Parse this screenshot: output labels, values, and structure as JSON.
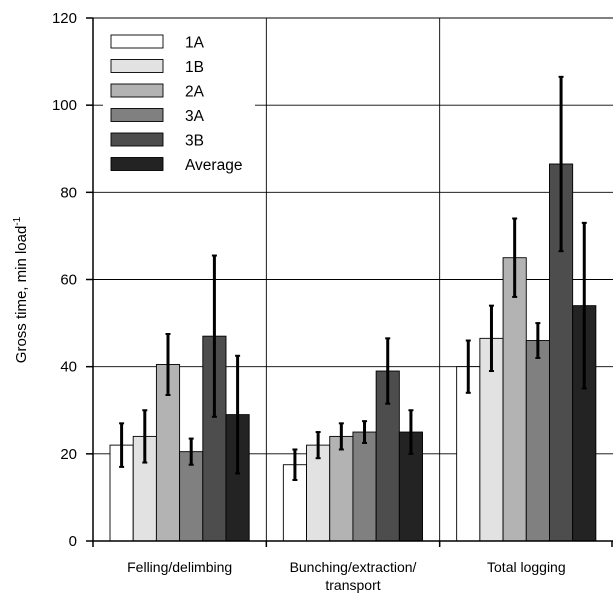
{
  "chart_data": {
    "type": "bar",
    "categories": [
      "Felling/delimbing",
      "Bunching/extraction/\ntransport",
      "Total logging"
    ],
    "ylabel": "Gross time, min load",
    "ylabel_superscript": "-1",
    "ylim": [
      0,
      120
    ],
    "yticks": [
      0,
      20,
      40,
      60,
      80,
      100,
      120
    ],
    "grid": true,
    "legend_position": "top-left",
    "series": [
      {
        "name": "1A",
        "color": "#ffffff",
        "values": [
          22,
          17.5,
          40
        ],
        "errors": [
          5,
          3.5,
          6
        ]
      },
      {
        "name": "1B",
        "color": "#e2e2e2",
        "values": [
          24,
          22,
          46.5
        ],
        "errors": [
          6,
          3,
          7.5
        ]
      },
      {
        "name": "2A",
        "color": "#b3b3b3",
        "values": [
          40.5,
          24,
          65
        ],
        "errors": [
          7,
          3,
          9
        ]
      },
      {
        "name": "3A",
        "color": "#808080",
        "values": [
          20.5,
          25,
          46
        ],
        "errors": [
          3,
          2.5,
          4
        ]
      },
      {
        "name": "3B",
        "color": "#4d4d4d",
        "values": [
          47,
          39,
          86.5
        ],
        "errors": [
          18.5,
          7.5,
          20
        ]
      },
      {
        "name": "Average",
        "color": "#232323",
        "values": [
          29,
          25,
          54
        ],
        "errors": [
          13.5,
          5,
          19
        ]
      }
    ]
  }
}
